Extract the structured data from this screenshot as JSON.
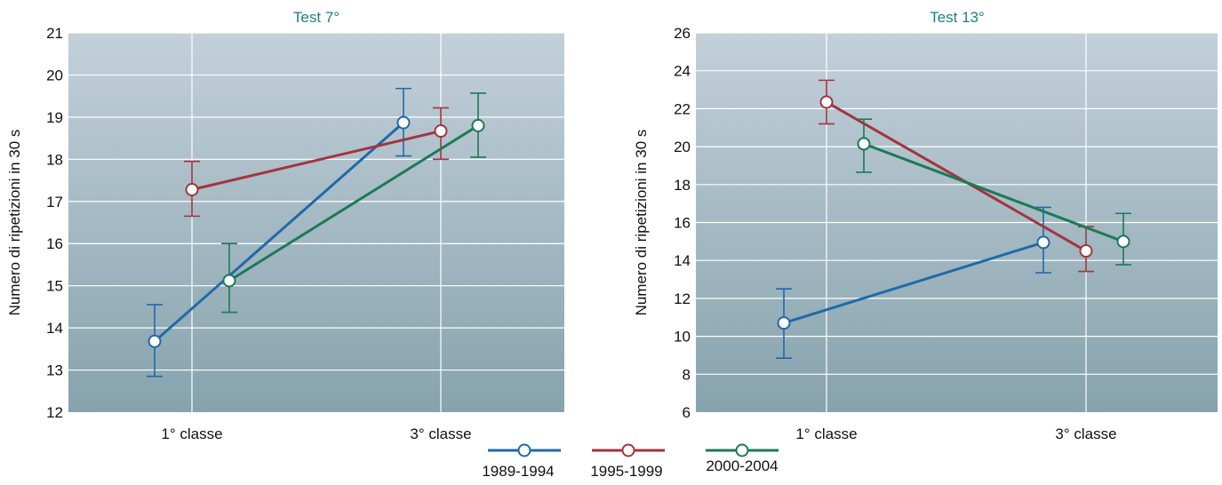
{
  "legend": {
    "items": [
      {
        "label": "1989-1994",
        "color": "#1f6aa8"
      },
      {
        "label": "1995-1999",
        "color": "#a3343e"
      },
      {
        "label": "2000-2004",
        "color": "#1b7a55"
      }
    ]
  },
  "colors": {
    "title": "#1a7f86",
    "plot_bg_top": "#c3d0da",
    "plot_bg_bottom": "#86a3ad",
    "grid": "#ffffff",
    "marker_fill": "#ffffff"
  },
  "chart_data": [
    {
      "type": "line",
      "title": "Test 7°",
      "xlabel": "",
      "ylabel": "Numero di ripetizioni in 30 s",
      "categories": [
        "1° classe",
        "3° classe"
      ],
      "ylim": [
        12,
        21
      ],
      "yticks": [
        12,
        13,
        14,
        15,
        16,
        17,
        18,
        19,
        20,
        21
      ],
      "grid": true,
      "error_bars": true,
      "series": [
        {
          "name": "1989-1994",
          "values": [
            13.68,
            18.87
          ],
          "err_low": [
            12.85,
            18.08
          ],
          "err_high": [
            14.55,
            19.68
          ]
        },
        {
          "name": "1995-1999",
          "values": [
            17.28,
            18.67
          ],
          "err_low": [
            16.65,
            18.0
          ],
          "err_high": [
            17.95,
            19.22
          ]
        },
        {
          "name": "2000-2004",
          "values": [
            15.12,
            18.8
          ],
          "err_low": [
            14.37,
            18.05
          ],
          "err_high": [
            16.0,
            19.57
          ]
        }
      ]
    },
    {
      "type": "line",
      "title": "Test 13°",
      "xlabel": "",
      "ylabel": "Numero di ripetizioni in 30 s",
      "categories": [
        "1° classe",
        "3° classe"
      ],
      "ylim": [
        6,
        26
      ],
      "yticks": [
        6,
        8,
        10,
        12,
        14,
        16,
        18,
        20,
        22,
        24,
        26
      ],
      "grid": true,
      "error_bars": true,
      "series": [
        {
          "name": "1989-1994",
          "values": [
            10.7,
            14.95
          ],
          "err_low": [
            8.85,
            13.35
          ],
          "err_high": [
            12.5,
            16.8
          ]
        },
        {
          "name": "1995-1999",
          "values": [
            22.35,
            14.5
          ],
          "err_low": [
            21.2,
            13.42
          ],
          "err_high": [
            23.5,
            15.78
          ]
        },
        {
          "name": "2000-2004",
          "values": [
            20.15,
            15.0
          ],
          "err_low": [
            18.65,
            13.77
          ],
          "err_high": [
            21.45,
            16.48
          ]
        }
      ]
    }
  ]
}
